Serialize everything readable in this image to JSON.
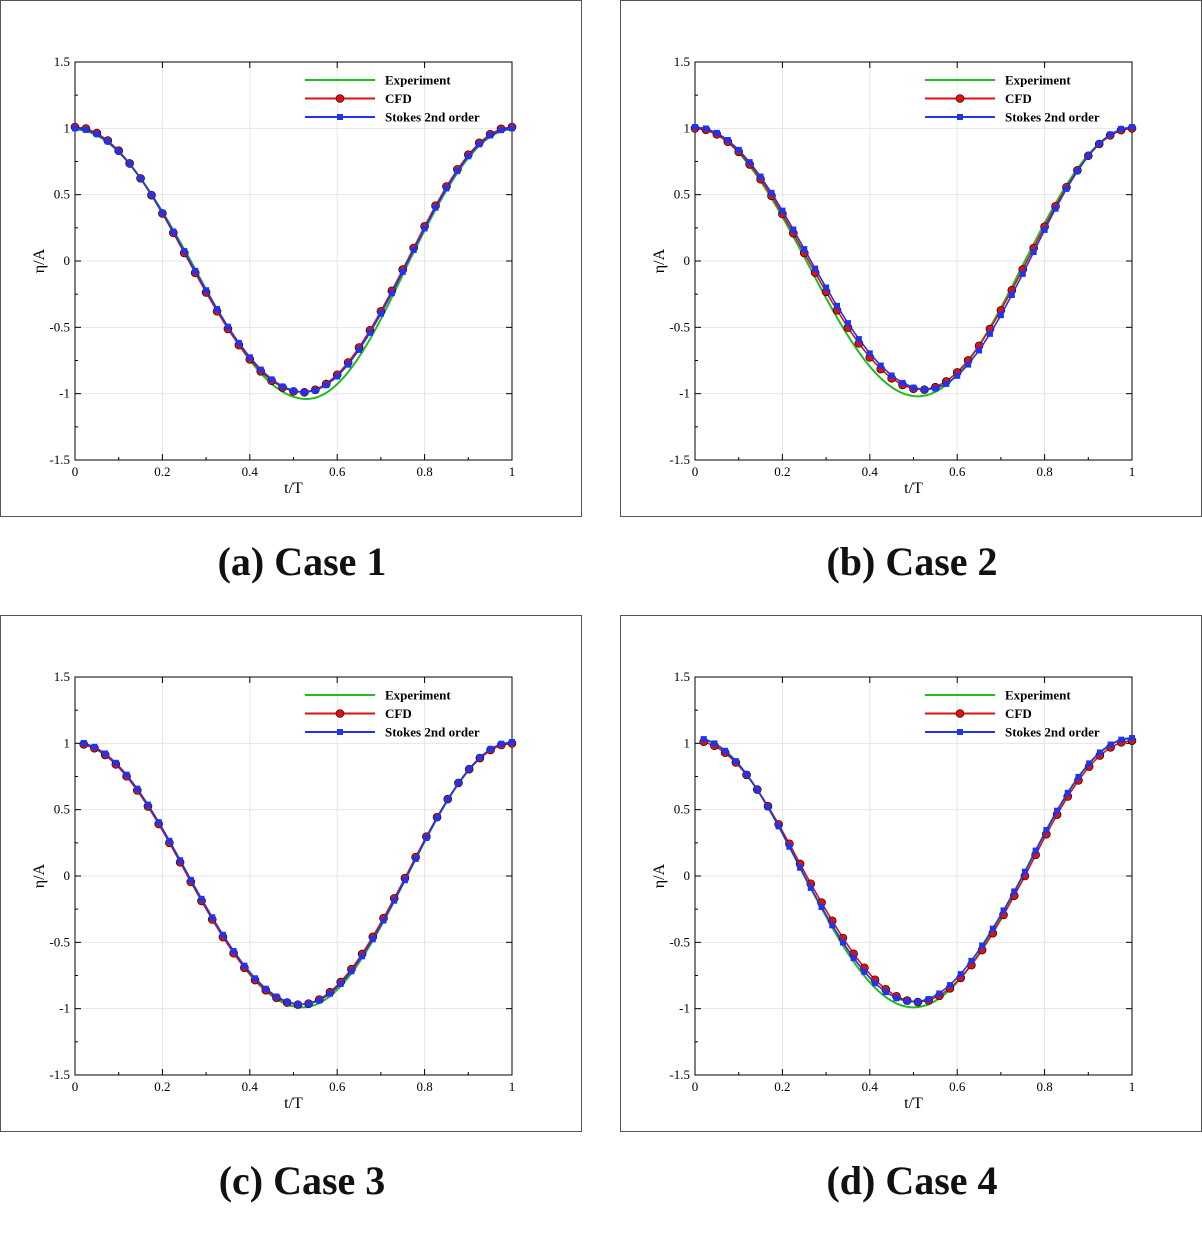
{
  "colors": {
    "experiment": "#22bb22",
    "cfd": "#dd1111",
    "stokes": "#2233ee",
    "grid": "#e6e6e6",
    "axis": "#000000"
  },
  "chart_data": [
    {
      "type": "line",
      "caption": "(a) Case 1",
      "xlabel": "t/T",
      "ylabel": "η/A",
      "xlim": [
        0,
        1
      ],
      "ylim": [
        -1.5,
        1.5
      ],
      "xticks": [
        "0",
        "0.2",
        "0.4",
        "0.6",
        "0.8",
        "1"
      ],
      "yticks": [
        "-1.5",
        "-1",
        "-0.5",
        "0",
        "0.5",
        "1",
        "1.5"
      ],
      "grid": true,
      "legend_position": "top-right",
      "series": [
        {
          "name": "Experiment",
          "key": "experiment",
          "marker": "none",
          "phase": 0.53,
          "amp_pos": 0.99,
          "amp_neg": 1.04,
          "t_start": 0.0
        },
        {
          "name": "CFD",
          "key": "cfd",
          "marker": "circle",
          "phase": 0.52,
          "amp_pos": 1.01,
          "amp_neg": 0.99,
          "t_start": 0.0
        },
        {
          "name": "Stokes 2nd order",
          "key": "stokes",
          "marker": "square",
          "phase": 0.525,
          "amp_pos": 1.0,
          "amp_neg": 0.99,
          "t_start": 0.0
        }
      ]
    },
    {
      "type": "line",
      "caption": "(b) Case 2",
      "xlabel": "t/T",
      "ylabel": "η/A",
      "xlim": [
        0,
        1
      ],
      "ylim": [
        -1.5,
        1.5
      ],
      "xticks": [
        "0",
        "0.2",
        "0.4",
        "0.6",
        "0.8",
        "1"
      ],
      "yticks": [
        "-1.5",
        "-1",
        "-0.5",
        "0",
        "0.5",
        "1",
        "1.5"
      ],
      "grid": true,
      "legend_position": "top-right",
      "series": [
        {
          "name": "Experiment",
          "key": "experiment",
          "marker": "none",
          "phase": 0.51,
          "amp_pos": 1.0,
          "amp_neg": 1.02,
          "t_start": 0.0
        },
        {
          "name": "CFD",
          "key": "cfd",
          "marker": "circle",
          "phase": 0.52,
          "amp_pos": 1.0,
          "amp_neg": 0.97,
          "t_start": 0.0
        },
        {
          "name": "Stokes 2nd order",
          "key": "stokes",
          "marker": "square",
          "phase": 0.53,
          "amp_pos": 1.01,
          "amp_neg": 0.97,
          "t_start": 0.0
        }
      ]
    },
    {
      "type": "line",
      "caption": "(c) Case 3",
      "xlabel": "t/T",
      "ylabel": "η/A",
      "xlim": [
        0,
        1
      ],
      "ylim": [
        -1.5,
        1.5
      ],
      "xticks": [
        "0",
        "0.2",
        "0.4",
        "0.6",
        "0.8",
        "1"
      ],
      "yticks": [
        "-1.5",
        "-1",
        "-0.5",
        "0",
        "0.5",
        "1",
        "1.5"
      ],
      "grid": true,
      "legend_position": "top-right",
      "series": [
        {
          "name": "Experiment",
          "key": "experiment",
          "marker": "none",
          "phase": 0.52,
          "amp_pos": 1.0,
          "amp_neg": 0.99,
          "t_start": 0.02
        },
        {
          "name": "CFD",
          "key": "cfd",
          "marker": "circle",
          "phase": 0.515,
          "amp_pos": 1.0,
          "amp_neg": 0.97,
          "t_start": 0.02
        },
        {
          "name": "Stokes 2nd order",
          "key": "stokes",
          "marker": "square",
          "phase": 0.52,
          "amp_pos": 1.01,
          "amp_neg": 0.97,
          "t_start": 0.02
        }
      ]
    },
    {
      "type": "line",
      "caption": "(d) Case 4",
      "xlabel": "t/T",
      "ylabel": "η/A",
      "xlim": [
        0,
        1
      ],
      "ylim": [
        -1.5,
        1.5
      ],
      "xticks": [
        "0",
        "0.2",
        "0.4",
        "0.6",
        "0.8",
        "1"
      ],
      "yticks": [
        "-1.5",
        "-1",
        "-0.5",
        "0",
        "0.5",
        "1",
        "1.5"
      ],
      "grid": true,
      "legend_position": "top-right",
      "series": [
        {
          "name": "Experiment",
          "key": "experiment",
          "marker": "none",
          "phase": 0.5,
          "amp_pos": 1.04,
          "amp_neg": 0.99,
          "t_start": 0.02
        },
        {
          "name": "CFD",
          "key": "cfd",
          "marker": "circle",
          "phase": 0.51,
          "amp_pos": 1.02,
          "amp_neg": 0.95,
          "t_start": 0.02
        },
        {
          "name": "Stokes 2nd order",
          "key": "stokes",
          "marker": "square",
          "phase": 0.5,
          "amp_pos": 1.04,
          "amp_neg": 0.95,
          "t_start": 0.02
        }
      ]
    }
  ]
}
